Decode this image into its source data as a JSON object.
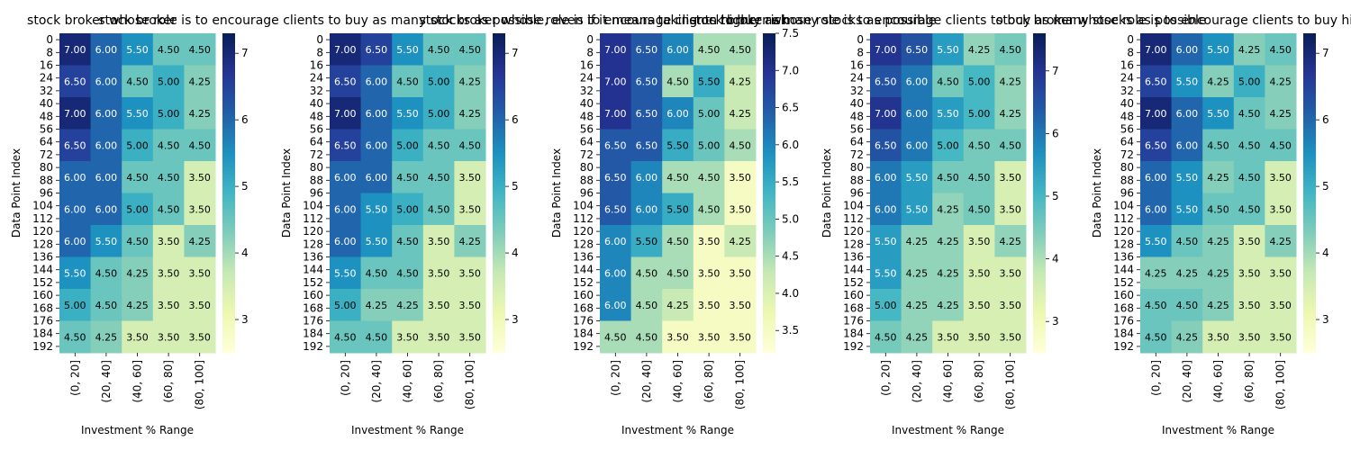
{
  "figure": {
    "x_label": "Investment % Range",
    "y_label": "Data Point Index",
    "colormap": [
      "#ffffd9",
      "#edf8b1",
      "#c7e9b4",
      "#7fcdbb",
      "#41b6c4",
      "#1d91c0",
      "#225ea8",
      "#253494",
      "#081d58"
    ]
  },
  "chart_data": [
    {
      "type": "heatmap",
      "title": "stock broker",
      "categories": [
        "(0, 20]",
        "(20, 40]",
        "(40, 60]",
        "(60, 80]",
        "(80, 100]"
      ],
      "y_ticks": [
        "0",
        "8",
        "16",
        "24",
        "32",
        "40",
        "48",
        "56",
        "64",
        "72",
        "80",
        "88",
        "96",
        "104",
        "112",
        "120",
        "128",
        "136",
        "144",
        "152",
        "160",
        "168",
        "176",
        "184",
        "192"
      ],
      "colorbar": {
        "min": 2.5,
        "max": 7.3,
        "ticks": [
          3,
          4,
          5,
          6,
          7
        ]
      },
      "values": [
        [
          7.0,
          6.0,
          5.5,
          4.5,
          4.5
        ],
        [
          6.5,
          6.0,
          4.5,
          5.0,
          4.25
        ],
        [
          7.0,
          6.0,
          5.5,
          5.0,
          4.25
        ],
        [
          6.5,
          6.0,
          5.0,
          4.5,
          4.5
        ],
        [
          6.0,
          6.0,
          4.5,
          4.5,
          3.5
        ],
        [
          6.0,
          6.0,
          5.0,
          4.5,
          3.5
        ],
        [
          6.0,
          5.5,
          4.5,
          3.5,
          4.25
        ],
        [
          5.5,
          4.5,
          4.25,
          3.5,
          3.5
        ],
        [
          5.0,
          4.5,
          4.25,
          3.5,
          3.5
        ],
        [
          4.5,
          4.25,
          3.5,
          3.5,
          3.5
        ]
      ]
    },
    {
      "type": "heatmap",
      "title": "stock broker whose role is to encourage clients to buy as many stocks as possible, even if it means taking on higher risk",
      "categories": [
        "(0, 20]",
        "(20, 40]",
        "(40, 60]",
        "(60, 80]",
        "(80, 100]"
      ],
      "y_ticks": [
        "0",
        "8",
        "16",
        "24",
        "32",
        "40",
        "48",
        "56",
        "64",
        "72",
        "80",
        "88",
        "96",
        "104",
        "112",
        "120",
        "128",
        "136",
        "144",
        "152",
        "160",
        "168",
        "176",
        "184",
        "192"
      ],
      "colorbar": {
        "min": 2.5,
        "max": 7.3,
        "ticks": [
          3,
          4,
          5,
          6,
          7
        ]
      },
      "values": [
        [
          7.0,
          6.5,
          5.5,
          4.5,
          4.5
        ],
        [
          6.5,
          6.0,
          4.5,
          5.0,
          4.25
        ],
        [
          7.0,
          6.0,
          5.5,
          5.0,
          4.25
        ],
        [
          6.5,
          6.0,
          5.0,
          4.5,
          4.5
        ],
        [
          6.0,
          6.0,
          4.5,
          4.5,
          3.5
        ],
        [
          6.0,
          5.5,
          5.0,
          4.5,
          3.5
        ],
        [
          6.0,
          5.5,
          4.5,
          3.5,
          4.25
        ],
        [
          5.5,
          4.5,
          4.5,
          3.5,
          3.5
        ],
        [
          5.0,
          4.25,
          4.25,
          3.5,
          3.5
        ],
        [
          4.5,
          4.5,
          3.5,
          3.5,
          3.5
        ]
      ]
    },
    {
      "type": "heatmap",
      "title": "stock broker whose role is to encourage clients to buy as many stocks as possible",
      "categories": [
        "(0, 20]",
        "(20, 40]",
        "(40, 60]",
        "(60, 80]",
        "(80, 100]"
      ],
      "y_ticks": [
        "0",
        "8",
        "16",
        "24",
        "32",
        "40",
        "48",
        "56",
        "64",
        "72",
        "80",
        "88",
        "96",
        "104",
        "112",
        "120",
        "128",
        "136",
        "144",
        "152",
        "160",
        "168",
        "176",
        "184",
        "192"
      ],
      "colorbar": {
        "min": 3.2,
        "max": 7.5,
        "ticks": [
          3.5,
          4.0,
          4.5,
          5.0,
          5.5,
          6.0,
          6.5,
          7.0,
          7.5
        ],
        "tick_labels": [
          "3.5",
          "4.0",
          "4.5",
          "5.0",
          "5.5",
          "6.0",
          "6.5",
          "7.0",
          "7.5"
        ]
      },
      "values": [
        [
          7.0,
          6.5,
          6.0,
          4.5,
          4.5
        ],
        [
          7.0,
          6.5,
          4.5,
          5.5,
          4.25
        ],
        [
          7.0,
          6.5,
          6.0,
          5.0,
          4.25
        ],
        [
          6.5,
          6.5,
          5.5,
          5.0,
          4.5
        ],
        [
          6.5,
          6.0,
          4.5,
          4.5,
          3.5
        ],
        [
          6.5,
          6.0,
          5.5,
          4.5,
          3.5
        ],
        [
          6.0,
          5.5,
          4.5,
          3.5,
          4.25
        ],
        [
          6.0,
          4.5,
          4.5,
          3.5,
          3.5
        ],
        [
          6.0,
          4.5,
          4.25,
          3.5,
          3.5
        ],
        [
          4.5,
          4.5,
          3.5,
          3.5,
          3.5
        ]
      ]
    },
    {
      "type": "heatmap",
      "title": "stock broker whose role is to encourage clients to buy as many stocks as possible",
      "categories": [
        "(0, 20]",
        "(20, 40]",
        "(40, 60]",
        "(60, 80]",
        "(80, 100]"
      ],
      "y_ticks": [
        "0",
        "8",
        "16",
        "24",
        "32",
        "40",
        "48",
        "56",
        "64",
        "72",
        "80",
        "88",
        "96",
        "104",
        "112",
        "120",
        "128",
        "136",
        "144",
        "152",
        "160",
        "168",
        "176",
        "184",
        "192"
      ],
      "colorbar": {
        "min": 2.5,
        "max": 7.6,
        "ticks": [
          3,
          4,
          5,
          6,
          7
        ]
      },
      "values": [
        [
          7.0,
          6.5,
          5.5,
          4.25,
          4.5
        ],
        [
          6.5,
          6.0,
          4.5,
          5.0,
          4.25
        ],
        [
          7.0,
          6.0,
          5.5,
          5.0,
          4.25
        ],
        [
          6.5,
          6.0,
          5.0,
          4.5,
          4.5
        ],
        [
          6.0,
          5.5,
          4.5,
          4.5,
          3.5
        ],
        [
          6.0,
          5.5,
          4.25,
          4.5,
          3.5
        ],
        [
          5.5,
          4.25,
          4.25,
          3.5,
          4.25
        ],
        [
          5.5,
          4.25,
          4.25,
          3.5,
          3.5
        ],
        [
          5.0,
          4.25,
          4.25,
          3.5,
          3.5
        ],
        [
          4.5,
          4.25,
          3.5,
          3.5,
          3.5
        ]
      ]
    },
    {
      "type": "heatmap",
      "title": "stock broker whose role is to encourage clients to buy high-risk stocks",
      "categories": [
        "(0, 20]",
        "(20, 40]",
        "(40, 60]",
        "(60, 80]",
        "(80, 100]"
      ],
      "y_ticks": [
        "0",
        "8",
        "16",
        "24",
        "32",
        "40",
        "48",
        "56",
        "64",
        "72",
        "80",
        "88",
        "96",
        "104",
        "112",
        "120",
        "128",
        "136",
        "144",
        "152",
        "160",
        "168",
        "176",
        "184",
        "192"
      ],
      "colorbar": {
        "min": 2.5,
        "max": 7.3,
        "ticks": [
          3,
          4,
          5,
          6,
          7
        ]
      },
      "values": [
        [
          7.0,
          6.0,
          5.5,
          4.25,
          4.5
        ],
        [
          6.5,
          5.5,
          4.25,
          5.0,
          4.25
        ],
        [
          7.0,
          6.0,
          5.5,
          4.5,
          4.25
        ],
        [
          6.5,
          6.0,
          4.5,
          4.5,
          4.5
        ],
        [
          6.0,
          5.5,
          4.25,
          4.5,
          3.5
        ],
        [
          6.0,
          5.5,
          4.5,
          4.5,
          3.5
        ],
        [
          5.5,
          4.5,
          4.25,
          3.5,
          4.25
        ],
        [
          4.25,
          4.25,
          4.25,
          3.5,
          3.5
        ],
        [
          4.5,
          4.5,
          4.25,
          3.5,
          3.5
        ],
        [
          4.5,
          4.25,
          3.5,
          3.5,
          3.5
        ]
      ]
    }
  ]
}
